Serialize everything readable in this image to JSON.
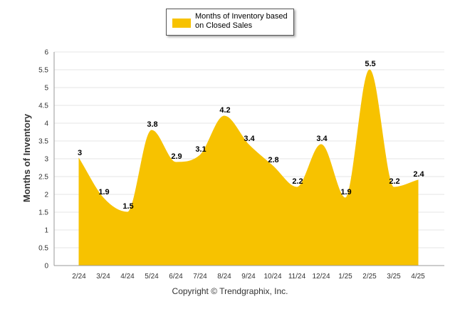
{
  "chart_data": {
    "type": "area",
    "categories": [
      "2/24",
      "3/24",
      "4/24",
      "5/24",
      "6/24",
      "7/24",
      "8/24",
      "9/24",
      "10/24",
      "11/24",
      "12/24",
      "1/25",
      "2/25",
      "3/25",
      "4/25"
    ],
    "series": [
      {
        "name": "Months of Inventory based on Closed Sales",
        "values": [
          3,
          1.9,
          1.5,
          3.8,
          2.9,
          3.1,
          4.2,
          3.4,
          2.8,
          2.2,
          3.4,
          1.9,
          5.5,
          2.2,
          2.4
        ],
        "color": "#F7C200"
      }
    ],
    "ylabel": "Months of Inventory",
    "ylim": [
      0,
      6
    ],
    "yticks": [
      "0",
      "0.5",
      "1",
      "1.5",
      "2",
      "2.5",
      "3",
      "3.5",
      "4",
      "4.5",
      "5",
      "5.5",
      "6"
    ],
    "grid": true,
    "legend": "top-center",
    "data_labels": true
  },
  "legend": {
    "label": "Months of Inventory based on Closed Sales"
  },
  "footer": {
    "copyright": "Copyright © Trendgraphix, Inc."
  }
}
